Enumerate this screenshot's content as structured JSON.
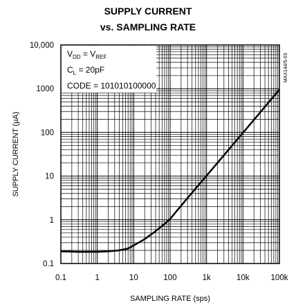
{
  "title_line1": "SUPPLY CURRENT",
  "title_line2": "vs. SAMPLING RATE",
  "side_code": "MAX144/5-03",
  "annotations": {
    "line1_main": "V",
    "line1_sub1": "DD",
    "line1_mid": " = V",
    "line1_sub2": "REF",
    "line2_main": "C",
    "line2_sub": "L",
    "line2_rest": " = 20pF",
    "line3": "CODE = 101010100000"
  },
  "chart_data": {
    "type": "line",
    "title": "SUPPLY CURRENT vs. SAMPLING RATE",
    "xlabel": "SAMPLING RATE (sps)",
    "ylabel": "SUPPLY CURRENT (µA)",
    "x_scale": "log",
    "y_scale": "log",
    "xlim": [
      0.1,
      100000
    ],
    "ylim": [
      0.1,
      10000
    ],
    "grid": true,
    "x_ticks": [
      0.1,
      1,
      10,
      100,
      1000,
      10000,
      100000
    ],
    "x_tick_labels": [
      "0.1",
      "1",
      "10",
      "100",
      "1k",
      "10k",
      "100k"
    ],
    "y_ticks": [
      0.1,
      1,
      10,
      100,
      1000,
      10000
    ],
    "y_tick_labels": [
      "0.1",
      "1",
      "10",
      "100",
      "1000",
      "10,000"
    ],
    "series": [
      {
        "x": [
          0.1,
          0.3,
          1,
          2,
          4,
          7,
          10,
          20,
          40,
          70,
          100,
          200,
          500,
          1000,
          3000,
          10000,
          30000,
          100000
        ],
        "y": [
          0.19,
          0.185,
          0.185,
          0.19,
          0.2,
          0.22,
          0.26,
          0.36,
          0.55,
          0.8,
          1.05,
          2.1,
          5.2,
          10.2,
          30,
          98,
          290,
          950
        ]
      }
    ]
  }
}
